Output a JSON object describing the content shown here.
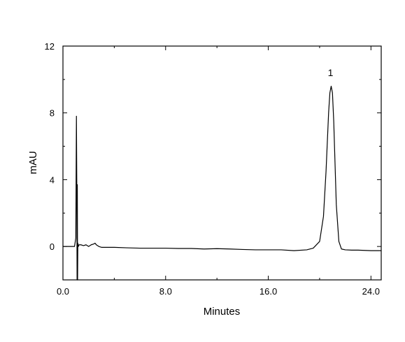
{
  "chart_data": {
    "type": "line",
    "xlabel": "Minutes",
    "ylabel": "mAU",
    "xlim": [
      0,
      24.8
    ],
    "ylim": [
      -2,
      12
    ],
    "xticks": [
      0,
      8,
      16,
      24
    ],
    "xtick_labels": [
      "0.0",
      "8.0",
      "16.0",
      "24.0"
    ],
    "yticks": [
      0,
      4,
      8,
      12
    ],
    "ytick_labels": [
      "0",
      "4",
      "8",
      "12"
    ],
    "grid": false,
    "series": [
      {
        "x": [
          0,
          0.5,
          0.9,
          1.0,
          1.05,
          1.08,
          1.1,
          1.12,
          1.14,
          1.16,
          1.18,
          1.2,
          1.25,
          1.3,
          1.4,
          1.6,
          1.8,
          2.0,
          2.2,
          2.4,
          2.5,
          2.6,
          2.8,
          3.0,
          4.0,
          5.0,
          6.0,
          7.0,
          8.0,
          9.0,
          10.0,
          11.0,
          12.0,
          13.0,
          14.0,
          15.0,
          16.0,
          17.0,
          18.0,
          19.0,
          19.5,
          20.0,
          20.3,
          20.5,
          20.7,
          20.8,
          20.9,
          21.0,
          21.1,
          21.2,
          21.3,
          21.5,
          21.7,
          22.0,
          22.5,
          23.0,
          24.0,
          24.8
        ],
        "y": [
          0.0,
          0.0,
          0.0,
          0.5,
          7.8,
          3.5,
          -2.0,
          3.7,
          -2.0,
          0.2,
          0.1,
          0.0,
          0.1,
          0.1,
          0.1,
          0.05,
          0.1,
          0.0,
          0.1,
          0.15,
          0.2,
          0.1,
          0.0,
          -0.05,
          -0.05,
          -0.08,
          -0.1,
          -0.1,
          -0.1,
          -0.12,
          -0.12,
          -0.15,
          -0.13,
          -0.15,
          -0.18,
          -0.2,
          -0.2,
          -0.2,
          -0.25,
          -0.2,
          -0.1,
          0.3,
          1.8,
          4.5,
          8.0,
          9.2,
          9.6,
          9.2,
          7.5,
          5.0,
          2.5,
          0.3,
          -0.15,
          -0.2,
          -0.22,
          -0.22,
          -0.25,
          -0.25
        ]
      }
    ],
    "annotations": [
      {
        "text": "1",
        "x": 20.85,
        "y": 10.2
      }
    ]
  }
}
